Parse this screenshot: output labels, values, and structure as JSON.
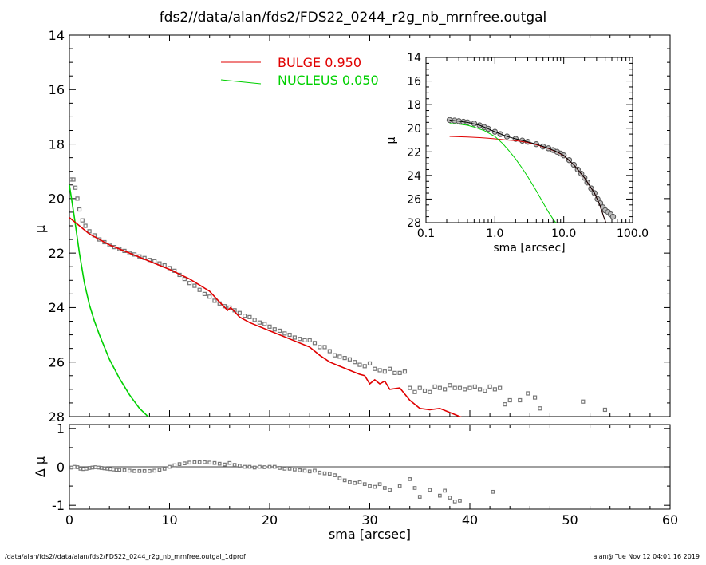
{
  "title": "fds2//data/alan/fds2/FDS22_0244_r2g_nb_mrnfree.outgal",
  "footer_left": "/data/alan/fds2//data/alan/fds2/FDS22_0244_r2g_nb_mrnfree.outgal_1dprof",
  "footer_right": "alan@  Tue Nov 12 04:01:16 2019",
  "colors": {
    "bulge": "#e00000",
    "nucleus": "#00d000",
    "data": "#777777",
    "axis": "#000000"
  },
  "chart_data": [
    {
      "id": "main",
      "type": "line",
      "xlabel": "",
      "ylabel": "μ",
      "xlim": [
        0,
        60
      ],
      "ylim": [
        28,
        14
      ],
      "xticks": [
        0,
        10,
        20,
        30,
        40,
        50,
        60
      ],
      "yticks": [
        14,
        16,
        18,
        20,
        22,
        24,
        26,
        28
      ],
      "legend": {
        "placement": "top-center",
        "entries": [
          {
            "label": "BULGE  0.950",
            "color": "#e00000"
          },
          {
            "label": "NUCLEUS  0.050",
            "color": "#00d000"
          }
        ]
      },
      "observed": {
        "x": [
          0.2,
          0.4,
          0.6,
          0.8,
          1.0,
          1.3,
          1.6,
          2.0,
          2.5,
          3.0,
          3.5,
          4.0,
          4.5,
          5.0,
          5.5,
          6.0,
          6.5,
          7.0,
          7.5,
          8.0,
          8.5,
          9.0,
          9.5,
          10.0,
          10.5,
          11.0,
          11.5,
          12.0,
          12.5,
          13.0,
          13.5,
          14.0,
          14.5,
          15.0,
          15.5,
          16.0,
          16.5,
          17.0,
          17.5,
          18.0,
          18.5,
          19.0,
          19.5,
          20.0,
          20.5,
          21.0,
          21.5,
          22.0,
          22.5,
          23.0,
          23.5,
          24.0,
          24.5,
          25.0,
          25.5,
          26.0,
          26.5,
          27.0,
          27.5,
          28.0,
          28.5,
          29.0,
          29.5,
          30.0,
          30.5,
          31.0,
          31.5,
          32.0,
          32.5,
          33.0,
          33.5,
          34.0,
          34.5,
          35.0,
          35.5,
          36.0,
          36.5,
          37.0,
          37.5,
          38.0,
          38.5,
          39.0,
          39.5,
          40.0,
          40.5,
          41.0,
          41.5,
          42.0,
          42.5,
          43.0,
          43.5,
          44.0,
          45.0,
          45.8,
          46.5,
          47.0,
          51.3,
          53.5
        ],
        "y": [
          19.3,
          19.3,
          19.6,
          20.0,
          20.4,
          20.8,
          21.0,
          21.2,
          21.35,
          21.5,
          21.6,
          21.7,
          21.78,
          21.85,
          21.92,
          22.0,
          22.05,
          22.12,
          22.18,
          22.25,
          22.3,
          22.38,
          22.45,
          22.55,
          22.65,
          22.8,
          22.95,
          23.1,
          23.2,
          23.35,
          23.5,
          23.6,
          23.75,
          23.85,
          23.95,
          24.0,
          24.1,
          24.2,
          24.3,
          24.35,
          24.45,
          24.55,
          24.6,
          24.7,
          24.8,
          24.85,
          24.95,
          25.0,
          25.1,
          25.15,
          25.2,
          25.2,
          25.3,
          25.45,
          25.45,
          25.6,
          25.75,
          25.8,
          25.85,
          25.9,
          26.0,
          26.1,
          26.15,
          26.05,
          26.25,
          26.3,
          26.35,
          26.25,
          26.4,
          26.4,
          26.35,
          26.95,
          27.1,
          26.95,
          27.05,
          27.1,
          26.9,
          26.95,
          27.0,
          26.85,
          26.95,
          26.95,
          27.0,
          26.95,
          26.9,
          27.0,
          27.05,
          26.9,
          27.0,
          26.95,
          27.55,
          27.4,
          27.4,
          27.15,
          27.3,
          27.7,
          27.45,
          27.75
        ]
      },
      "bulge": {
        "x": [
          0,
          2,
          4,
          6,
          8,
          10,
          12,
          14,
          15,
          15.8,
          16.1,
          16.5,
          17,
          18,
          20,
          22,
          24,
          25,
          26,
          27,
          28,
          29,
          29.5,
          30,
          30.5,
          31,
          31.5,
          32,
          33,
          34,
          35,
          36,
          37,
          38,
          39,
          39.8
        ],
        "y": [
          20.7,
          21.3,
          21.7,
          22.0,
          22.3,
          22.6,
          22.95,
          23.4,
          23.8,
          24.1,
          24.0,
          24.15,
          24.35,
          24.55,
          24.85,
          25.15,
          25.45,
          25.75,
          26.0,
          26.15,
          26.3,
          26.45,
          26.5,
          26.8,
          26.65,
          26.8,
          26.7,
          27.0,
          26.95,
          27.4,
          27.7,
          27.75,
          27.7,
          27.85,
          28.0,
          28.1
        ]
      },
      "nucleus": {
        "x": [
          0,
          0.5,
          1,
          1.5,
          2,
          2.5,
          3,
          4,
          5,
          6,
          7,
          8
        ],
        "y": [
          19.5,
          20.7,
          22.0,
          23.1,
          23.9,
          24.5,
          25.0,
          25.9,
          26.6,
          27.2,
          27.7,
          28.05
        ]
      }
    },
    {
      "id": "residual",
      "type": "scatter",
      "xlabel": "sma [arcsec]",
      "ylabel": "Δ μ",
      "xlim": [
        0,
        60
      ],
      "ylim": [
        -1.1,
        1.1
      ],
      "xticks": [
        0,
        10,
        20,
        30,
        40,
        50,
        60
      ],
      "yticks": [
        -1,
        0,
        1
      ],
      "zero_line": 0,
      "x": [
        0.2,
        0.5,
        0.8,
        1.1,
        1.4,
        1.7,
        2.0,
        2.3,
        2.6,
        2.9,
        3.2,
        3.5,
        3.8,
        4.1,
        4.4,
        4.7,
        5.0,
        5.5,
        6.0,
        6.5,
        7.0,
        7.5,
        8.0,
        8.5,
        9.0,
        9.5,
        10.0,
        10.5,
        11.0,
        11.5,
        12.0,
        12.5,
        13.0,
        13.5,
        14.0,
        14.5,
        15.0,
        15.5,
        16.0,
        16.5,
        17.0,
        17.5,
        18.0,
        18.5,
        19.0,
        19.5,
        20.0,
        20.5,
        21.0,
        21.5,
        22.0,
        22.5,
        23.0,
        23.5,
        24.0,
        24.5,
        25.0,
        25.5,
        26.0,
        26.5,
        27.0,
        27.5,
        28.0,
        28.5,
        29.0,
        29.5,
        30.0,
        30.5,
        31.0,
        31.5,
        32.0,
        33.0,
        34.0,
        34.5,
        35.0,
        36.0,
        37.0,
        37.5,
        38.0,
        38.5,
        39.0,
        42.3
      ],
      "y": [
        -0.02,
        0.0,
        -0.01,
        -0.05,
        -0.06,
        -0.05,
        -0.03,
        -0.02,
        -0.01,
        -0.02,
        -0.03,
        -0.04,
        -0.05,
        -0.06,
        -0.07,
        -0.08,
        -0.08,
        -0.09,
        -0.1,
        -0.11,
        -0.11,
        -0.11,
        -0.11,
        -0.1,
        -0.08,
        -0.05,
        0.0,
        0.04,
        0.07,
        0.09,
        0.11,
        0.12,
        0.12,
        0.12,
        0.11,
        0.1,
        0.08,
        0.06,
        0.1,
        0.05,
        0.03,
        0.0,
        0.0,
        -0.02,
        0.0,
        -0.01,
        0.0,
        0.0,
        -0.03,
        -0.05,
        -0.05,
        -0.07,
        -0.09,
        -0.1,
        -0.12,
        -0.1,
        -0.15,
        -0.17,
        -0.18,
        -0.22,
        -0.3,
        -0.35,
        -0.4,
        -0.42,
        -0.4,
        -0.45,
        -0.5,
        -0.52,
        -0.45,
        -0.55,
        -0.6,
        -0.5,
        -0.32,
        -0.55,
        -0.78,
        -0.6,
        -0.75,
        -0.62,
        -0.8,
        -0.9,
        -0.88,
        -0.65
      ]
    },
    {
      "id": "inset",
      "type": "line",
      "xlabel": "sma [arcsec]",
      "ylabel": "μ",
      "xscale": "log",
      "xlim": [
        0.1,
        100.0
      ],
      "ylim": [
        28,
        14
      ],
      "xticks": [
        0.1,
        1.0,
        10.0,
        100.0
      ],
      "xtick_labels": [
        "0.1",
        "1.0",
        "10.0",
        "100.0"
      ],
      "yticks": [
        14,
        16,
        18,
        20,
        22,
        24,
        26,
        28
      ],
      "observed": {
        "x": [
          0.22,
          0.26,
          0.3,
          0.35,
          0.4,
          0.5,
          0.6,
          0.7,
          0.8,
          1.0,
          1.2,
          1.5,
          2.0,
          2.5,
          3.0,
          4.0,
          5.0,
          6.0,
          7.0,
          8.0,
          9.0,
          10.0,
          12.0,
          14.0,
          16.0,
          18.0,
          20.0,
          22.0,
          25.0,
          28.0,
          31.0,
          34.0,
          37.0,
          40.0,
          44.0,
          48.0,
          52.0
        ],
        "y": [
          19.3,
          19.35,
          19.4,
          19.45,
          19.5,
          19.6,
          19.75,
          19.9,
          20.05,
          20.3,
          20.5,
          20.7,
          20.9,
          21.05,
          21.15,
          21.35,
          21.55,
          21.7,
          21.85,
          22.0,
          22.15,
          22.3,
          22.7,
          23.1,
          23.5,
          23.85,
          24.2,
          24.6,
          25.1,
          25.5,
          26.0,
          26.35,
          26.7,
          26.95,
          27.1,
          27.3,
          27.5
        ]
      },
      "total": {
        "x": [
          0.22,
          0.3,
          0.4,
          0.6,
          0.8,
          1.0,
          1.5,
          2.0,
          3.0,
          4.0,
          6.0,
          8.0,
          10.0,
          14.0,
          20.0,
          28.0,
          34.0,
          38.0,
          41.0
        ],
        "y": [
          19.3,
          19.4,
          19.5,
          19.75,
          20.05,
          20.3,
          20.7,
          20.9,
          21.15,
          21.35,
          21.7,
          22.0,
          22.3,
          23.1,
          24.2,
          25.5,
          26.6,
          27.5,
          28.0
        ]
      },
      "bulge": {
        "x": [
          0.22,
          0.4,
          0.6,
          0.8,
          1.0,
          1.5,
          2.0,
          3.0,
          4.0,
          6.0,
          8.0,
          10.0,
          14.0,
          20.0,
          28.0,
          34.0,
          38.0,
          41.0
        ],
        "y": [
          20.7,
          20.75,
          20.8,
          20.85,
          20.9,
          21.0,
          21.05,
          21.2,
          21.4,
          21.72,
          22.02,
          22.32,
          23.1,
          24.2,
          25.5,
          26.6,
          27.5,
          28.0
        ]
      },
      "nucleus": {
        "x": [
          0.22,
          0.3,
          0.4,
          0.5,
          0.7,
          1.0,
          1.3,
          1.6,
          2.0,
          2.5,
          3.0,
          4.0,
          5.0,
          6.0,
          7.0,
          7.8
        ],
        "y": [
          19.6,
          19.65,
          19.75,
          19.9,
          20.2,
          20.7,
          21.3,
          21.9,
          22.6,
          23.4,
          24.1,
          25.3,
          26.3,
          27.1,
          27.7,
          28.05
        ]
      }
    }
  ]
}
